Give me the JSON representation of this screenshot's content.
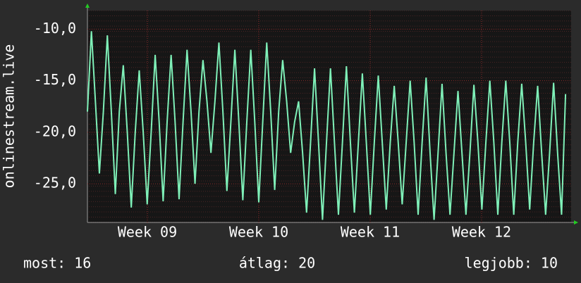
{
  "chart_data": {
    "type": "line",
    "y_label": "onlinestream.live",
    "x": [
      0,
      0.25,
      0.5,
      0.75,
      1,
      1.25,
      1.5,
      1.75,
      2,
      2.25,
      2.5,
      2.75,
      3,
      3.25,
      3.5,
      3.75,
      4,
      4.25,
      4.5,
      4.75,
      5,
      5.25,
      5.5,
      5.75,
      6,
      6.25,
      6.5,
      6.75,
      7,
      7.25,
      7.5,
      7.75,
      8,
      8.25,
      8.5,
      8.75,
      9,
      9.25,
      9.5,
      9.75,
      10,
      10.25,
      10.5,
      10.75,
      11,
      11.25,
      11.5,
      11.75,
      12,
      12.25,
      12.5,
      12.75,
      13,
      13.25,
      13.5,
      13.75,
      14,
      14.25,
      14.5,
      14.75,
      15,
      15.25,
      15.5,
      15.75,
      16,
      16.25,
      16.5,
      16.75,
      17,
      17.25,
      17.5,
      17.75,
      18,
      18.25,
      18.5,
      18.75,
      19,
      19.25,
      19.5,
      19.75,
      20,
      20.25,
      20.5,
      20.75,
      21,
      21.25,
      21.5,
      21.75,
      22,
      22.25,
      22.5,
      22.75,
      23,
      23.25,
      23.5,
      23.75,
      24,
      24.25,
      24.5,
      24.75,
      25,
      25.25,
      25.5,
      25.75,
      26,
      26.25,
      26.5,
      26.75,
      27,
      27.25,
      27.5,
      27.75,
      28,
      28.25,
      28.5,
      28.75,
      29,
      29.25,
      29.5,
      29.75,
      30
    ],
    "series": [
      {
        "color": "#7ff0b8",
        "values": [
          -18,
          -10.2,
          -17,
          -24,
          -18,
          -10.6,
          -18,
          -26,
          -18,
          -13.5,
          -20,
          -27.3,
          -20,
          -14,
          -20,
          -27,
          -20,
          -12.5,
          -19,
          -26.7,
          -19,
          -12.5,
          -19,
          -26.5,
          -19,
          -12,
          -18,
          -25,
          -18,
          -13,
          -17,
          -22,
          -17,
          -11.3,
          -18,
          -25.7,
          -19,
          -12,
          -19,
          -26.6,
          -19,
          -12,
          -19,
          -26.8,
          -19,
          -11.3,
          -18,
          -25.6,
          -18,
          -13,
          -17,
          -22,
          -19,
          -17,
          -22,
          -27.8,
          -21,
          -13.8,
          -21,
          -28.5,
          -21,
          -13.8,
          -21,
          -28,
          -21,
          -13.6,
          -21,
          -27.8,
          -21,
          -14.3,
          -21,
          -28,
          -21,
          -14.5,
          -21,
          -27.5,
          -21,
          -15.5,
          -21,
          -27,
          -21,
          -15,
          -21,
          -28,
          -21,
          -14.7,
          -22,
          -28.5,
          -22,
          -15.3,
          -22,
          -28,
          -22,
          -16,
          -22,
          -28,
          -22,
          -15.4,
          -21,
          -27.5,
          -21,
          -15,
          -21,
          -28,
          -21,
          -15,
          -21,
          -28,
          -21,
          -15.3,
          -21,
          -27.5,
          -21,
          -15.5,
          -22,
          -28,
          -22,
          -15.2,
          -22,
          -28,
          -16.3
        ]
      }
    ],
    "xlim": [
      0,
      30.35
    ],
    "xticks": [
      {
        "value": 3.76,
        "label": "Week 09"
      },
      {
        "value": 10.75,
        "label": "Week 10"
      },
      {
        "value": 17.74,
        "label": "Week 11"
      },
      {
        "value": 24.73,
        "label": "Week 12"
      }
    ],
    "ylim": [
      -28.75,
      -8.2
    ],
    "yticks": [
      {
        "value": -25,
        "label": "-25,0"
      },
      {
        "value": -20,
        "label": "-20,0"
      },
      {
        "value": -15,
        "label": "-15,0"
      },
      {
        "value": -10,
        "label": "-10,0"
      }
    ],
    "grid": true,
    "footer": {
      "current": "most: 16",
      "average": "átlag: 20",
      "best": "legjobb: 10"
    }
  }
}
